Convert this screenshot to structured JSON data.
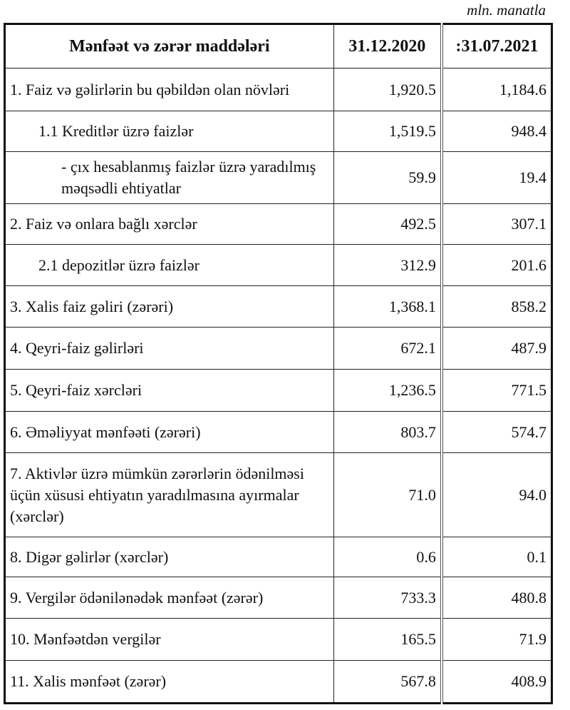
{
  "unit": "mln. manatla",
  "headers": [
    "Mənfəət və zərər maddələri",
    "31.12.2020",
    ":31.07.2021"
  ],
  "rows": [
    {
      "label": "1. Faiz və gəlirlərin bu qəbildən olan növləri",
      "v2020": "1,920.5",
      "v2021": "1,184.6",
      "indent": 0,
      "h": 60
    },
    {
      "label": "1.1 Kreditlər üzrə faizlər",
      "v2020": "1,519.5",
      "v2021": "948.4",
      "indent": 1,
      "h": 57
    },
    {
      "label": "-  çıx hesablanmış faizlər üzrə yaradılmış məqsədli ehtiyatlar",
      "v2020": "59.9",
      "v2021": "19.4",
      "indent": 2,
      "h": 73
    },
    {
      "label": "2. Faiz və onlara bağlı xərclər",
      "v2020": "492.5",
      "v2021": "307.1",
      "indent": 0,
      "h": 57
    },
    {
      "label": "2.1 depozitlər üzrə faizlər",
      "v2020": "312.9",
      "v2021": "201.6",
      "indent": 1,
      "h": 58
    },
    {
      "label": "3. Xalis faiz gəliri (zərəri)",
      "v2020": "1,368.1",
      "v2021": "858.2",
      "indent": 0,
      "h": 58
    },
    {
      "label": "4. Qeyri-faiz gəlirləri",
      "v2020": "672.1",
      "v2021": "487.9",
      "indent": 0,
      "h": 59
    },
    {
      "label": "5. Qeyri-faiz xərcləri",
      "v2020": "1,236.5",
      "v2021": "771.5",
      "indent": 0,
      "h": 59
    },
    {
      "label": "6. Əməliyyat mənfəəti (zərəri)",
      "v2020": "803.7",
      "v2021": "574.7",
      "indent": 0,
      "h": 58
    },
    {
      "label": "7. Aktivlər üzrə mümkün zərərlərin ödənilməsi üçün xüsusi ehtiyatın yaradılmasına ayırmalar (xərclər)",
      "v2020": "71.0",
      "v2021": "94.0",
      "indent": 0,
      "h": 118
    },
    {
      "label": "8. Digər gəlirlər (xərclər)",
      "v2020": "0.6",
      "v2021": "0.1",
      "indent": 0,
      "h": 56
    },
    {
      "label": "9. Vergilər ödənilənədək mənfəət (zərər)",
      "v2020": "733.3",
      "v2021": "480.8",
      "indent": 0,
      "h": 58
    },
    {
      "label": "10. Mənfəətdən vergilər",
      "v2020": "165.5",
      "v2021": "71.9",
      "indent": 0,
      "h": 59
    },
    {
      "label": "11. Xalis mənfəət (zərər)",
      "v2020": "567.8",
      "v2021": "408.9",
      "indent": 0,
      "h": 60
    }
  ]
}
